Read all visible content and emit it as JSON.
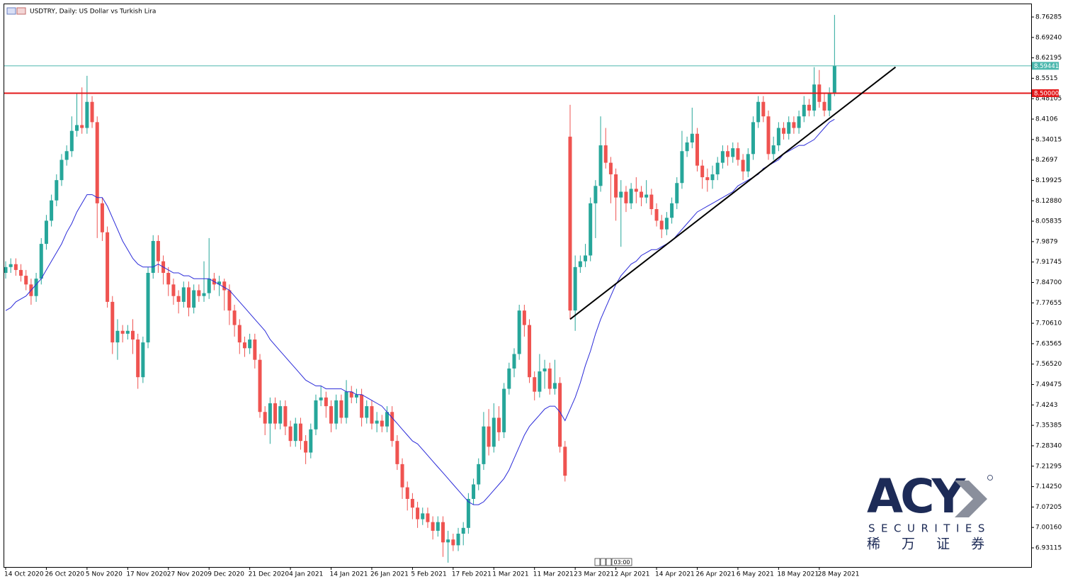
{
  "chart_data": {
    "type": "candlestick",
    "title": "USDTRY, Daily:  US Dollar vs Turkish Lira",
    "categories": [
      "14 Oct 2020",
      null,
      null,
      null,
      null,
      null,
      null,
      null,
      "26 Oct 2020",
      null,
      null,
      null,
      null,
      null,
      null,
      null,
      "5 Nov 2020",
      null,
      null,
      null,
      null,
      null,
      null,
      null,
      "17 Nov 2020",
      null,
      null,
      null,
      null,
      null,
      null,
      null,
      "27 Nov 2020",
      null,
      null,
      null,
      null,
      null,
      null,
      null,
      "9 Dec 2020",
      null,
      null,
      null,
      null,
      null,
      null,
      null,
      "21 Dec 2020",
      null,
      null,
      null,
      null,
      null,
      null,
      null,
      "4 Jan 2021",
      null,
      null,
      null,
      null,
      null,
      null,
      null,
      "14 Jan 2021",
      null,
      null,
      null,
      null,
      null,
      null,
      null,
      "26 Jan 2021",
      null,
      null,
      null,
      null,
      null,
      null,
      null,
      "5 Feb 2021",
      null,
      null,
      null,
      null,
      null,
      null,
      null,
      "17 Feb 2021",
      null,
      null,
      null,
      null,
      null,
      null,
      null,
      "1 Mar 2021",
      null,
      null,
      null,
      null,
      null,
      null,
      null,
      "11 Mar 2021",
      null,
      null,
      null,
      null,
      null,
      null,
      null,
      "23 Mar 2021",
      null,
      null,
      null,
      null,
      null,
      null,
      null,
      "2 Apr 2021",
      null,
      null,
      null,
      null,
      null,
      null,
      null,
      "14 Apr 2021",
      null,
      null,
      null,
      null,
      null,
      null,
      null,
      "26 Apr 2021",
      null,
      null,
      null,
      null,
      null,
      null,
      null,
      "6 May 2021",
      null,
      null,
      null,
      null,
      null,
      null,
      null,
      "18 May 2021",
      null,
      null,
      null,
      null,
      null,
      null,
      null,
      "28 May 2021",
      null,
      null,
      null
    ],
    "open": [
      7.88,
      7.9,
      7.91,
      7.89,
      7.87,
      7.84,
      7.8,
      7.86,
      7.98,
      8.06,
      8.13,
      8.2,
      8.27,
      8.3,
      8.37,
      8.39,
      8.38,
      8.47,
      8.4,
      8.12,
      8.02,
      7.78,
      7.64,
      7.68,
      7.67,
      7.68,
      7.65,
      7.52,
      7.64,
      7.88,
      7.99,
      7.92,
      7.88,
      7.84,
      7.8,
      7.78,
      7.83,
      7.76,
      7.82,
      7.8,
      7.81,
      7.86,
      7.84,
      7.85,
      7.82,
      7.75,
      7.7,
      7.64,
      7.62,
      7.65,
      7.58,
      7.4,
      7.36,
      7.43,
      7.36,
      7.42,
      7.35,
      7.3,
      7.36,
      7.3,
      7.26,
      7.34,
      7.44,
      7.45,
      7.42,
      7.36,
      7.44,
      7.38,
      7.47,
      7.45,
      7.46,
      7.38,
      7.42,
      7.36,
      7.37,
      7.35,
      7.4,
      7.3,
      7.22,
      7.14,
      7.1,
      7.07,
      7.03,
      7.05,
      7.02,
      6.99,
      7.02,
      6.95,
      6.96,
      6.94,
      6.98,
      7.0,
      7.1,
      7.15,
      7.22,
      7.35,
      7.28,
      7.38,
      7.33,
      7.48,
      7.55,
      7.6,
      7.75,
      7.7,
      7.52,
      7.47,
      7.54,
      7.55,
      7.48,
      7.5,
      7.28,
      8.35,
      7.75,
      7.9,
      7.92,
      7.94,
      8.12,
      8.18,
      8.32,
      8.26,
      8.22,
      8.14,
      8.16,
      8.12,
      8.17,
      8.16,
      8.14,
      8.15,
      8.1,
      8.06,
      8.03,
      8.07,
      8.12,
      8.19,
      8.3,
      8.33,
      8.36,
      8.25,
      8.21,
      8.2,
      8.22,
      8.26,
      8.3,
      8.28,
      8.31,
      8.27,
      8.23,
      8.29,
      8.4,
      8.47,
      8.42,
      8.29,
      8.32,
      8.38,
      8.36,
      8.4,
      8.38,
      8.42,
      8.46,
      8.44,
      8.53,
      8.47,
      8.44,
      8.5
    ],
    "high": [
      7.92,
      7.93,
      7.93,
      7.91,
      7.89,
      7.86,
      7.88,
      8.0,
      8.08,
      8.15,
      8.22,
      8.29,
      8.32,
      8.42,
      8.5,
      8.52,
      8.56,
      8.49,
      8.42,
      8.14,
      8.04,
      7.8,
      7.72,
      7.7,
      7.7,
      7.72,
      7.67,
      7.66,
      7.9,
      8.01,
      8.01,
      7.94,
      7.9,
      7.86,
      7.82,
      7.85,
      7.85,
      7.84,
      7.84,
      7.92,
      8.0,
      7.88,
      7.87,
      7.86,
      7.84,
      7.77,
      7.72,
      7.66,
      7.67,
      7.67,
      7.6,
      7.42,
      7.45,
      7.45,
      7.44,
      7.44,
      7.37,
      7.38,
      7.38,
      7.32,
      7.36,
      7.46,
      7.49,
      7.47,
      7.44,
      7.46,
      7.46,
      7.51,
      7.49,
      7.48,
      7.48,
      7.44,
      7.44,
      7.4,
      7.39,
      7.42,
      7.42,
      7.32,
      7.24,
      7.16,
      7.12,
      7.09,
      7.07,
      7.07,
      7.04,
      7.04,
      7.04,
      6.99,
      6.98,
      7.0,
      7.02,
      7.12,
      7.17,
      7.24,
      7.4,
      7.41,
      7.43,
      7.42,
      7.5,
      7.57,
      7.62,
      7.77,
      7.77,
      7.72,
      7.54,
      7.6,
      7.58,
      7.57,
      7.58,
      7.52,
      7.3,
      8.46,
      7.94,
      7.94,
      7.98,
      8.14,
      8.2,
      8.42,
      8.38,
      8.28,
      8.24,
      8.2,
      8.18,
      8.19,
      8.21,
      8.18,
      8.2,
      8.17,
      8.12,
      8.08,
      8.09,
      8.14,
      8.21,
      8.37,
      8.35,
      8.45,
      8.38,
      8.27,
      8.24,
      8.25,
      8.28,
      8.32,
      8.32,
      8.33,
      8.33,
      8.29,
      8.31,
      8.42,
      8.49,
      8.49,
      8.44,
      8.35,
      8.4,
      8.4,
      8.42,
      8.42,
      8.44,
      8.49,
      8.48,
      8.59,
      8.58,
      8.5,
      8.52,
      8.77
    ],
    "low": [
      7.86,
      7.88,
      7.87,
      7.85,
      7.82,
      7.77,
      7.78,
      7.84,
      7.96,
      8.04,
      8.11,
      8.18,
      8.25,
      8.28,
      8.35,
      8.36,
      8.36,
      8.38,
      8.0,
      7.99,
      7.76,
      7.6,
      7.58,
      7.64,
      7.65,
      7.6,
      7.48,
      7.5,
      7.62,
      7.86,
      7.88,
      7.84,
      7.8,
      7.77,
      7.74,
      7.76,
      7.73,
      7.74,
      7.78,
      7.78,
      7.79,
      7.82,
      7.8,
      7.75,
      7.7,
      7.66,
      7.6,
      7.59,
      7.6,
      7.55,
      7.38,
      7.32,
      7.29,
      7.34,
      7.34,
      7.32,
      7.28,
      7.28,
      7.27,
      7.22,
      7.24,
      7.32,
      7.42,
      7.38,
      7.33,
      7.34,
      7.36,
      7.36,
      7.43,
      7.43,
      7.35,
      7.36,
      7.34,
      7.33,
      7.33,
      7.33,
      7.28,
      7.2,
      7.1,
      7.06,
      7.03,
      7.0,
      7.01,
      7.0,
      6.96,
      6.97,
      6.9,
      6.88,
      6.92,
      6.92,
      6.94,
      6.98,
      7.08,
      7.13,
      7.2,
      7.25,
      7.26,
      7.3,
      7.31,
      7.46,
      7.52,
      7.58,
      7.66,
      7.5,
      7.44,
      7.45,
      7.48,
      7.46,
      7.46,
      7.26,
      7.16,
      7.72,
      7.68,
      7.88,
      7.9,
      7.92,
      8.0,
      8.16,
      8.24,
      8.12,
      8.06,
      7.97,
      8.09,
      8.1,
      8.12,
      8.11,
      8.12,
      8.08,
      8.04,
      8.0,
      8.01,
      8.05,
      8.1,
      8.17,
      8.28,
      8.31,
      8.23,
      8.17,
      8.16,
      8.17,
      8.2,
      8.24,
      8.25,
      8.26,
      8.25,
      8.2,
      8.21,
      8.27,
      8.38,
      8.4,
      8.27,
      8.27,
      8.3,
      8.34,
      8.34,
      8.36,
      8.36,
      8.4,
      8.42,
      8.42,
      8.45,
      8.42,
      8.42,
      8.49
    ],
    "close": [
      7.9,
      7.91,
      7.89,
      7.87,
      7.84,
      7.8,
      7.86,
      7.98,
      8.06,
      8.13,
      8.2,
      8.27,
      8.3,
      8.37,
      8.39,
      8.38,
      8.47,
      8.4,
      8.12,
      8.02,
      7.78,
      7.64,
      7.68,
      7.67,
      7.68,
      7.65,
      7.52,
      7.64,
      7.88,
      7.99,
      7.92,
      7.88,
      7.84,
      7.8,
      7.78,
      7.83,
      7.76,
      7.82,
      7.8,
      7.81,
      7.86,
      7.84,
      7.85,
      7.82,
      7.75,
      7.7,
      7.64,
      7.62,
      7.65,
      7.58,
      7.4,
      7.36,
      7.43,
      7.36,
      7.42,
      7.35,
      7.3,
      7.36,
      7.3,
      7.26,
      7.34,
      7.44,
      7.45,
      7.42,
      7.36,
      7.44,
      7.38,
      7.47,
      7.45,
      7.46,
      7.38,
      7.42,
      7.36,
      7.37,
      7.35,
      7.4,
      7.3,
      7.22,
      7.14,
      7.1,
      7.07,
      7.03,
      7.05,
      7.02,
      6.99,
      7.02,
      6.95,
      6.96,
      6.94,
      6.98,
      7.0,
      7.1,
      7.15,
      7.22,
      7.35,
      7.28,
      7.38,
      7.33,
      7.48,
      7.55,
      7.6,
      7.75,
      7.7,
      7.52,
      7.47,
      7.54,
      7.55,
      7.48,
      7.5,
      7.28,
      7.18,
      7.75,
      7.9,
      7.92,
      7.94,
      8.12,
      8.18,
      8.32,
      8.26,
      8.22,
      8.14,
      8.16,
      8.12,
      8.17,
      8.16,
      8.14,
      8.15,
      8.1,
      8.06,
      8.03,
      8.07,
      8.12,
      8.19,
      8.3,
      8.33,
      8.36,
      8.25,
      8.21,
      8.2,
      8.22,
      8.26,
      8.3,
      8.28,
      8.31,
      8.27,
      8.23,
      8.29,
      8.4,
      8.47,
      8.42,
      8.29,
      8.32,
      8.38,
      8.36,
      8.4,
      8.38,
      8.42,
      8.46,
      8.44,
      8.53,
      8.47,
      8.44,
      8.5,
      8.594
    ],
    "up_color": "#26a69a",
    "down_color": "#ef5350",
    "ma_color": "#2b2bd9",
    "ma_values": [
      7.75,
      7.76,
      7.78,
      7.79,
      7.8,
      7.82,
      7.84,
      7.86,
      7.89,
      7.92,
      7.95,
      7.98,
      8.02,
      8.05,
      8.09,
      8.12,
      8.15,
      8.15,
      8.14,
      8.14,
      8.11,
      8.07,
      8.03,
      7.99,
      7.96,
      7.93,
      7.91,
      7.9,
      7.9,
      7.9,
      7.91,
      7.9,
      7.89,
      7.88,
      7.88,
      7.87,
      7.87,
      7.86,
      7.86,
      7.86,
      7.86,
      7.85,
      7.84,
      7.83,
      7.82,
      7.8,
      7.78,
      7.76,
      7.74,
      7.72,
      7.7,
      7.68,
      7.65,
      7.63,
      7.61,
      7.59,
      7.57,
      7.55,
      7.53,
      7.51,
      7.5,
      7.49,
      7.49,
      7.48,
      7.48,
      7.48,
      7.48,
      7.47,
      7.47,
      7.46,
      7.46,
      7.45,
      7.44,
      7.43,
      7.42,
      7.4,
      7.38,
      7.36,
      7.34,
      7.32,
      7.3,
      7.29,
      7.27,
      7.25,
      7.23,
      7.21,
      7.19,
      7.17,
      7.15,
      7.13,
      7.11,
      7.09,
      7.08,
      7.08,
      7.09,
      7.11,
      7.13,
      7.15,
      7.17,
      7.2,
      7.24,
      7.28,
      7.32,
      7.35,
      7.37,
      7.39,
      7.41,
      7.42,
      7.42,
      7.4,
      7.37,
      7.41,
      7.45,
      7.5,
      7.56,
      7.61,
      7.67,
      7.72,
      7.76,
      7.8,
      7.84,
      7.87,
      7.89,
      7.91,
      7.92,
      7.94,
      7.95,
      7.96,
      7.96,
      7.97,
      7.98,
      7.99,
      8.01,
      8.03,
      8.05,
      8.07,
      8.09,
      8.1,
      8.11,
      8.12,
      8.13,
      8.14,
      8.15,
      8.16,
      8.18,
      8.19,
      8.2,
      8.21,
      8.22,
      8.24,
      8.25,
      8.26,
      8.27,
      8.29,
      8.3,
      8.31,
      8.32,
      8.32,
      8.33,
      8.34,
      8.36,
      8.38,
      8.4,
      8.41
    ],
    "trendline": {
      "x": [
        111,
        175
      ],
      "values": [
        7.72,
        8.59
      ],
      "color": "#000000"
    },
    "hlines": [
      {
        "value": 8.59441,
        "color": "#4cb8ae"
      },
      {
        "value": {
          "value": 8.5,
          "label": "8.50000"
        },
        "color": "#e3191b"
      }
    ],
    "ylim": [
      6.8651,
      8.8093
    ],
    "yticks": [
      8.76285,
      {
        "value": 8.6924,
        "label": "8.69240"
      },
      8.62195,
      8.5515,
      8.48105,
      8.4106,
      8.34015,
      8.2697,
      8.19925,
      {
        "value": 8.1288,
        "label": "8.12880"
      },
      8.05835,
      7.9879,
      7.91745,
      {
        "value": 7.847,
        "label": "7.84700"
      },
      7.77655,
      {
        "value": 7.7061,
        "label": "7.70610"
      },
      7.63565,
      {
        "value": 7.5652,
        "label": "7.56520"
      },
      7.49475,
      7.4243,
      7.35385,
      {
        "value": 7.2834,
        "label": "7.28340"
      },
      7.21295,
      {
        "value": 7.1425,
        "label": "7.14250"
      },
      7.07205,
      {
        "value": 7.0016,
        "label": "7.00160"
      },
      6.93115
    ],
    "time_marker": "03:00",
    "logo": {
      "name": "ACY",
      "subtitle": "SECURITIES",
      "chinese": "稀 万 证 券"
    }
  }
}
